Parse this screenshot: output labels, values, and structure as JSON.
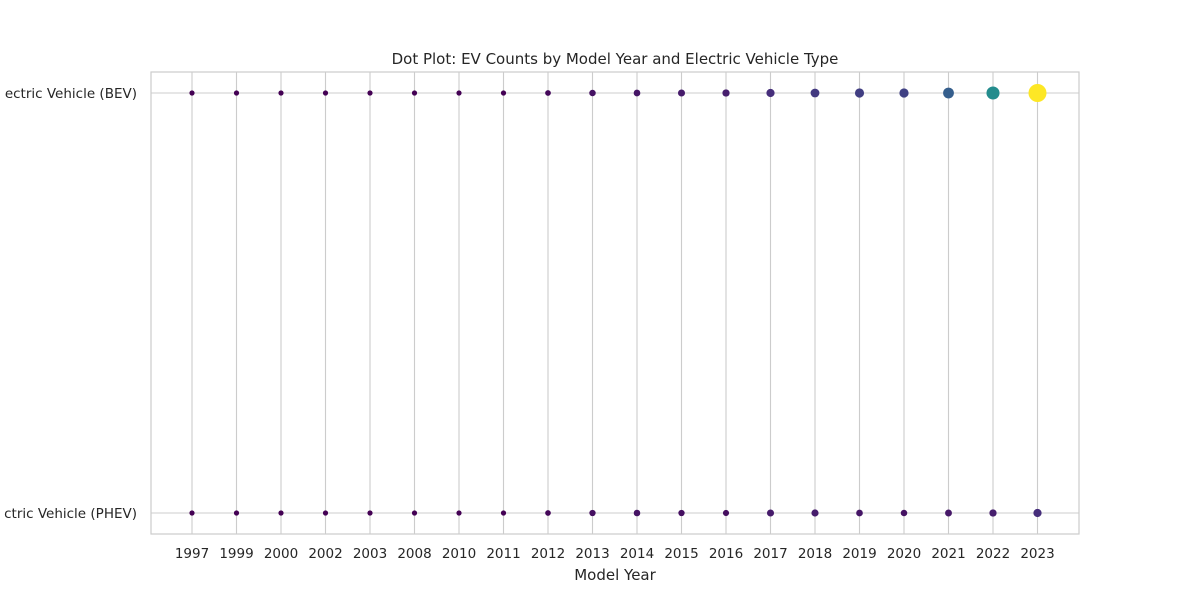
{
  "chart_data": {
    "type": "scatter",
    "title": "Dot Plot: EV Counts by Model Year and Electric Vehicle Type",
    "xlabel": "Model Year",
    "ylabel": "",
    "categories": [
      "1997",
      "1999",
      "2000",
      "2002",
      "2003",
      "2008",
      "2010",
      "2011",
      "2012",
      "2013",
      "2014",
      "2015",
      "2016",
      "2017",
      "2018",
      "2019",
      "2020",
      "2021",
      "2022",
      "2023"
    ],
    "y_categories": [
      "Battery Electric Vehicle (BEV)",
      "Plug-in Hybrid Electric Vehicle (PHEV)"
    ],
    "y_tick_labels": [
      "ectric Vehicle (BEV)",
      "ctric Vehicle (PHEV)"
    ],
    "series": [
      {
        "values": [
          1,
          1,
          1,
          1,
          1,
          1,
          20,
          10,
          1200,
          3000,
          3500,
          4500,
          5000,
          8000,
          10000,
          11000,
          11500,
          17500,
          28000,
          58000
        ]
      },
      {
        "values": [
          1,
          1,
          1,
          1,
          1,
          1,
          10,
          5,
          1000,
          2500,
          3200,
          2500,
          2200,
          4500,
          4800,
          3500,
          3000,
          4000,
          5000,
          8000
        ]
      }
    ],
    "size_scale": "count",
    "colormap": "viridis",
    "grid": true,
    "legend": "none"
  }
}
